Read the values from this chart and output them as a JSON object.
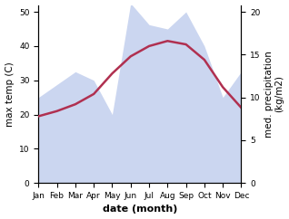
{
  "months": [
    "Jan",
    "Feb",
    "Mar",
    "Apr",
    "May",
    "Jun",
    "Jul",
    "Aug",
    "Sep",
    "Oct",
    "Nov",
    "Dec"
  ],
  "month_positions": [
    1,
    2,
    3,
    4,
    5,
    6,
    7,
    8,
    9,
    10,
    11,
    12
  ],
  "max_temp": [
    19.5,
    21.0,
    23.0,
    26.0,
    32.0,
    37.0,
    40.0,
    41.5,
    40.5,
    36.0,
    28.0,
    22.0
  ],
  "precipitation": [
    10.0,
    11.5,
    13.0,
    12.0,
    8.0,
    21.0,
    18.5,
    18.0,
    20.0,
    16.0,
    10.0,
    13.0
  ],
  "temp_ylim": [
    0,
    52
  ],
  "precip_ylim": [
    0,
    20.8
  ],
  "temp_yticks": [
    0,
    10,
    20,
    30,
    40,
    50
  ],
  "precip_yticks": [
    0,
    5,
    10,
    15,
    20
  ],
  "fill_color": "#b0c0e8",
  "fill_alpha": 0.65,
  "line_color": "#b03050",
  "line_width": 1.8,
  "xlabel": "date (month)",
  "ylabel_left": "max temp (C)",
  "ylabel_right": "med. precipitation\n(kg/m2)",
  "bg_color": "#ffffff",
  "axis_fontsize": 7.5,
  "tick_fontsize": 6.5,
  "xlabel_fontsize": 8
}
